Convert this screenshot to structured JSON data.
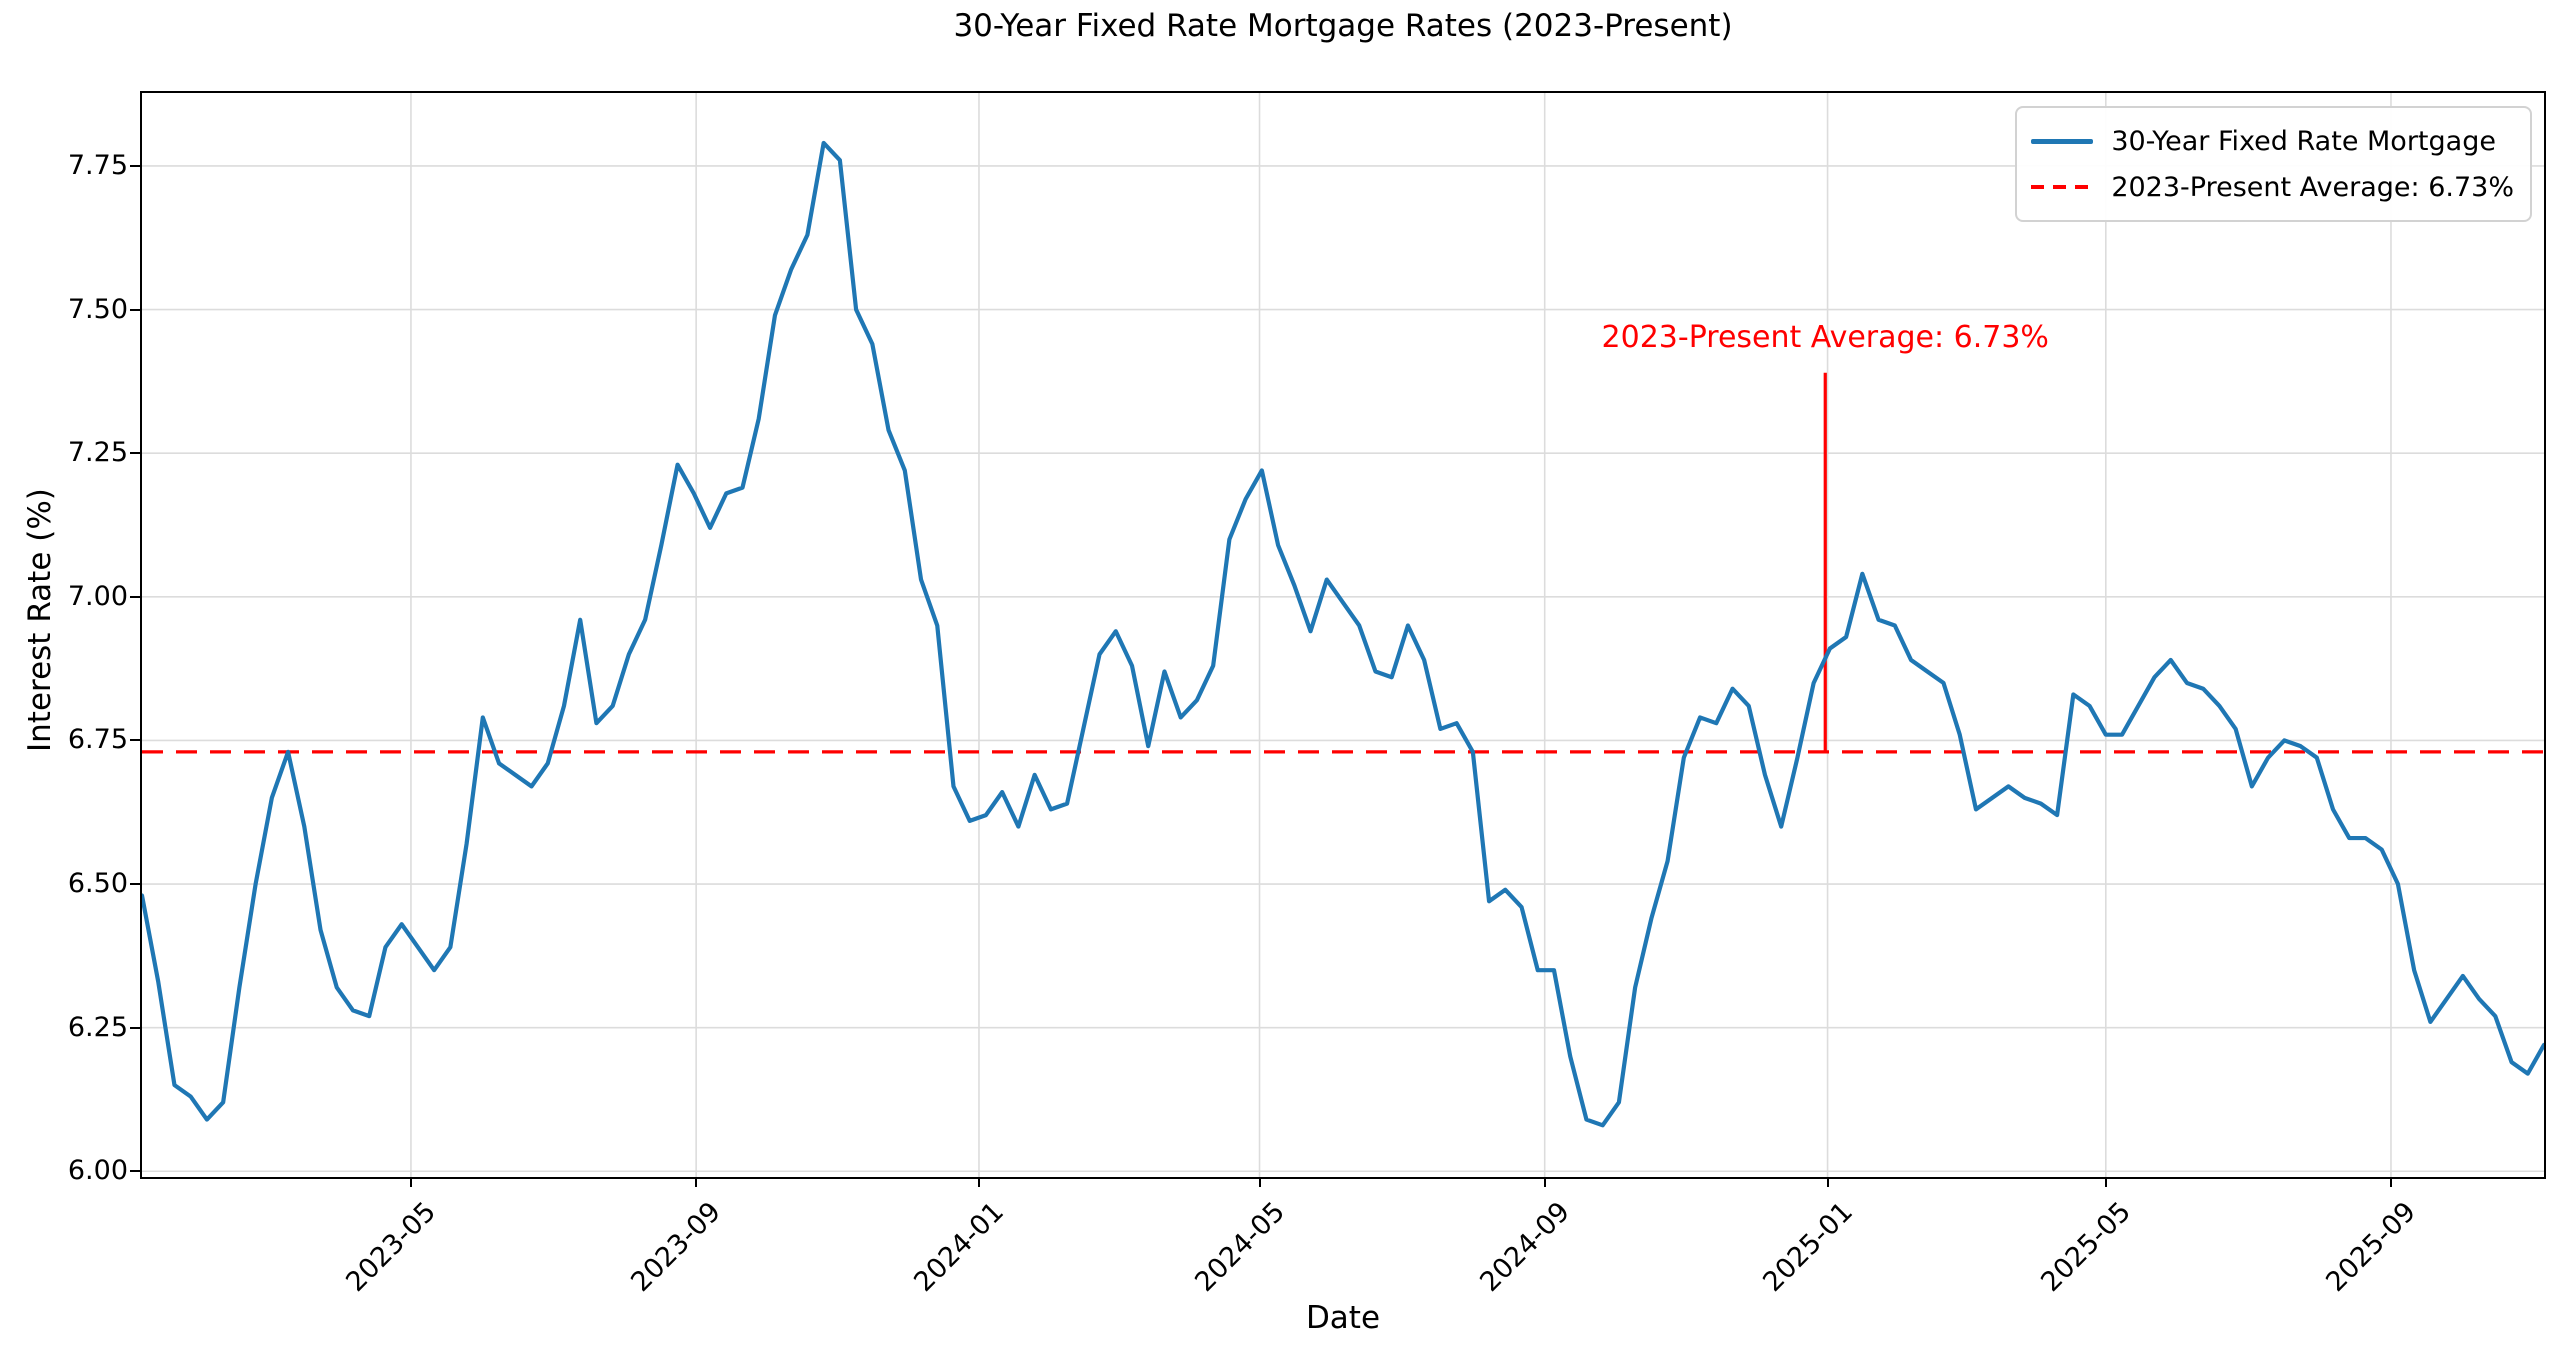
{
  "title": "30-Year Fixed Rate Mortgage Rates (2023-Present)",
  "axes": {
    "xlabel": "Date",
    "ylabel": "Interest Rate (%)"
  },
  "legend": {
    "position": "upper right",
    "items": [
      {
        "label": "30-Year Fixed Rate Mortgage",
        "color": "#1f77b4",
        "style": "solid"
      },
      {
        "label": "2023-Present Average: 6.73%",
        "color": "#ff0000",
        "style": "dashed"
      }
    ]
  },
  "annotation": {
    "text": "2023-Present Average: 6.73%",
    "color": "#ff0000",
    "pointer_day_offset": 726,
    "pointer_top_value": 7.39,
    "pointer_bottom_value": 6.73
  },
  "colors": {
    "line": "#1f77b4",
    "average": "#ff0000",
    "grid": "#dcdcdc",
    "spine": "#000000",
    "background": "#ffffff"
  },
  "chart_data": {
    "type": "line",
    "title": "30-Year Fixed Rate Mortgage Rates (2023-Present)",
    "xlabel": "Date",
    "ylabel": "Interest Rate (%)",
    "grid": true,
    "legend_position": "upper right",
    "x_start_date": "2023-01-05",
    "x_end_date": "2025-11-06",
    "x_interval_days": 7,
    "x_total_days": 1036,
    "ylim": [
      5.99,
      7.877
    ],
    "yticks": [
      6.0,
      6.25,
      6.5,
      6.75,
      7.0,
      7.25,
      7.5,
      7.75
    ],
    "xticks": [
      {
        "label": "2023-05",
        "day": 116
      },
      {
        "label": "2023-09",
        "day": 239
      },
      {
        "label": "2024-01",
        "day": 361
      },
      {
        "label": "2024-05",
        "day": 482
      },
      {
        "label": "2024-09",
        "day": 605
      },
      {
        "label": "2025-01",
        "day": 727
      },
      {
        "label": "2025-05",
        "day": 847
      },
      {
        "label": "2025-09",
        "day": 970
      }
    ],
    "average_line": {
      "label": "2023-Present Average: 6.73%",
      "value": 6.73,
      "color": "#ff0000",
      "style": "dashed"
    },
    "series": [
      {
        "name": "30-Year Fixed Rate Mortgage",
        "color": "#1f77b4",
        "values": [
          6.48,
          6.33,
          6.15,
          6.13,
          6.09,
          6.12,
          6.32,
          6.5,
          6.65,
          6.73,
          6.6,
          6.42,
          6.32,
          6.28,
          6.27,
          6.39,
          6.43,
          6.39,
          6.35,
          6.39,
          6.57,
          6.79,
          6.71,
          6.69,
          6.67,
          6.71,
          6.81,
          6.96,
          6.78,
          6.81,
          6.9,
          6.96,
          7.09,
          7.23,
          7.18,
          7.12,
          7.18,
          7.19,
          7.31,
          7.49,
          7.57,
          7.63,
          7.79,
          7.76,
          7.5,
          7.44,
          7.29,
          7.22,
          7.03,
          6.95,
          6.67,
          6.61,
          6.62,
          6.66,
          6.6,
          6.69,
          6.63,
          6.64,
          6.77,
          6.9,
          6.94,
          6.88,
          6.74,
          6.87,
          6.79,
          6.82,
          6.88,
          7.1,
          7.17,
          7.22,
          7.09,
          7.02,
          6.94,
          7.03,
          6.99,
          6.95,
          6.87,
          6.86,
          6.95,
          6.89,
          6.77,
          6.78,
          6.73,
          6.47,
          6.49,
          6.46,
          6.35,
          6.35,
          6.2,
          6.09,
          6.08,
          6.12,
          6.32,
          6.44,
          6.54,
          6.72,
          6.79,
          6.78,
          6.84,
          6.81,
          6.69,
          6.6,
          6.72,
          6.85,
          6.91,
          6.93,
          7.04,
          6.96,
          6.95,
          6.89,
          6.87,
          6.85,
          6.76,
          6.63,
          6.65,
          6.67,
          6.65,
          6.64,
          6.62,
          6.83,
          6.81,
          6.76,
          6.76,
          6.81,
          6.86,
          6.89,
          6.85,
          6.84,
          6.81,
          6.77,
          6.67,
          6.72,
          6.75,
          6.74,
          6.72,
          6.63,
          6.58,
          6.58,
          6.56,
          6.5,
          6.35,
          6.26,
          6.3,
          6.34,
          6.3,
          6.27,
          6.19,
          6.17,
          6.22
        ]
      }
    ]
  }
}
